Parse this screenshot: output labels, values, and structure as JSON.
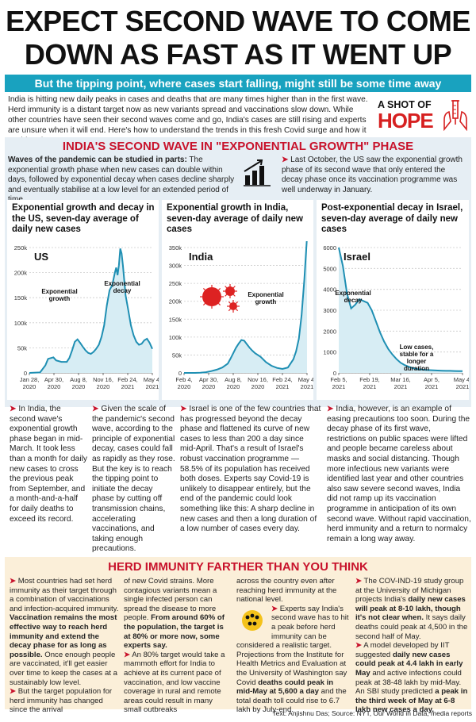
{
  "headline": {
    "line1": "EXPECT SECOND WAVE TO COME",
    "line2": "DOWN AS FAST AS IT WENT UP"
  },
  "subheadline": "But the tipping point, where cases start falling, might still be some time away",
  "intro": "India is hitting new daily peaks in cases and deaths that are many times higher than in the first wave. Herd immunity is a distant target now as new variants spread and vaccinations slow down. While other countries have seen their second waves come and go, India's cases are still rising and experts are unsure when it will end. Here's how to understand the trends in this fresh Covid surge and how it could end",
  "badge": {
    "line1": "A SHOT OF",
    "line2": "HOPE"
  },
  "section1": {
    "title": "INDIA'S SECOND WAVE IN \"EXPONENTIAL GROWTH\" PHASE",
    "waves_bold": "Waves of the pandemic can be studied in parts:",
    "waves_rest": " The exponential growth phase when new cases can double within days, followed by exponential decay when cases decline sharply and eventually stabilise at a low level for an extended period of time.",
    "lastoct": "Last October, the US saw the exponential growth phase of its second wave that only entered the decay phase once its vaccination programme was well underway in January."
  },
  "chart_data": [
    {
      "type": "line",
      "title": "Exponential growth and decay in the US, seven-day average of daily new cases",
      "panel_label": "US",
      "color": "#1f8fb3",
      "x_ticks": [
        "Jan 28,\n2020",
        "Apr 30,\n2020",
        "Aug 8,\n2020",
        "Nov 16,\n2020",
        "Feb 24,\n2021",
        "May 4,\n2021"
      ],
      "y_ticks": [
        "250k",
        "200k",
        "150k",
        "100k",
        "50k",
        "0"
      ],
      "ylim": [
        0,
        250000
      ],
      "annotations": [
        "Exponential growth",
        "Exponential decay"
      ],
      "x": [
        0,
        40,
        60,
        70,
        90,
        100,
        120,
        140,
        150,
        160,
        170,
        180,
        190,
        200,
        210,
        220,
        230,
        240,
        250,
        260,
        270,
        280,
        290,
        300,
        310,
        320,
        325,
        330,
        335,
        340,
        345,
        350,
        355,
        360,
        370,
        380,
        390,
        400,
        410,
        420,
        430,
        440,
        450,
        460
      ],
      "y": [
        0,
        1000,
        15000,
        28000,
        31000,
        25000,
        22000,
        22000,
        30000,
        45000,
        62000,
        67000,
        60000,
        52000,
        45000,
        40000,
        38000,
        42000,
        48000,
        56000,
        72000,
        95000,
        135000,
        165000,
        175000,
        200000,
        210000,
        195000,
        215000,
        248000,
        238000,
        215000,
        185000,
        155000,
        125000,
        95000,
        75000,
        62000,
        56000,
        58000,
        65000,
        68000,
        60000,
        48000
      ]
    },
    {
      "type": "line",
      "title": "Exponential growth in India, seven-day average of daily new cases",
      "panel_label": "India",
      "color": "#1f8fb3",
      "x_ticks": [
        "Feb 4,\n2020",
        "Apr 30,\n2020",
        "Aug 8,\n2020",
        "Nov 16,\n2020",
        "Feb 24,\n2021",
        "May 4,\n2021"
      ],
      "y_ticks": [
        "350k",
        "300k",
        "250k",
        "200k",
        "150k",
        "100k",
        "50k",
        "0"
      ],
      "ylim": [
        0,
        350000
      ],
      "annotations": [
        "Exponential growth"
      ],
      "x": [
        0,
        40,
        60,
        80,
        100,
        120,
        140,
        160,
        170,
        180,
        190,
        200,
        210,
        220,
        230,
        240,
        250,
        260,
        280,
        300,
        320,
        340,
        360,
        380,
        400,
        410,
        420,
        430,
        440,
        445,
        450
      ],
      "y": [
        0,
        0,
        500,
        2000,
        5000,
        9000,
        15000,
        26000,
        40000,
        55000,
        70000,
        82000,
        92000,
        90000,
        80000,
        70000,
        62000,
        55000,
        45000,
        30000,
        20000,
        14000,
        11000,
        15000,
        38000,
        60000,
        95000,
        160000,
        260000,
        320000,
        380000
      ]
    },
    {
      "type": "line",
      "title": "Post-exponential decay in Israel, seven-day average of daily new cases",
      "panel_label": "Israel",
      "color": "#1f8fb3",
      "x_ticks": [
        "Feb 5,\n2021",
        "Feb 19,\n2021",
        "Mar 16,\n2021",
        "Apr 5,\n2021",
        "May 4,\n2021"
      ],
      "y_ticks": [
        "6000",
        "5000",
        "4000",
        "3000",
        "2000",
        "1000",
        "0"
      ],
      "ylim": [
        0,
        6800
      ],
      "annotations": [
        "Exponential decay",
        "Low cases, stable for a longer duration"
      ],
      "x": [
        0,
        3,
        6,
        9,
        12,
        15,
        18,
        21,
        24,
        27,
        30,
        33,
        36,
        39,
        42,
        45,
        48,
        51,
        54,
        57,
        60,
        63,
        66,
        69,
        72,
        75,
        78,
        81,
        84,
        87,
        90
      ],
      "y": [
        6800,
        5800,
        4300,
        3500,
        3700,
        4000,
        3900,
        3800,
        3400,
        2800,
        2200,
        1700,
        1300,
        1000,
        750,
        550,
        420,
        330,
        260,
        210,
        180,
        160,
        150,
        140,
        130,
        120,
        110,
        110,
        105,
        100,
        95
      ]
    }
  ],
  "col1": {
    "lead": "In India, the second wave's exponential growth phase began in mid-March. It took less than a month for daily new cases to cross the previous peak from September, and a month-and-a-half for daily deaths to exceed its record."
  },
  "col2": {
    "lead": "Given the scale of the pandemic's second wave, according to the principle of exponential decay, cases could fall as rapidly as they rose. But the key is to reach the tipping point to initiate the decay phase by cutting off transmission chains, accelerating vaccinations, and taking enough precautions."
  },
  "col3": {
    "lead": "Israel is one of the few countries that has progressed beyond the decay phase and flattened its curve of new cases to less than 200 a day since mid-April. That's a result of Israel's robust vaccination programme — 58.5% of its population has received both doses. Experts say Covid-19 is unlikely to disappear entirely, but the end of the pandemic could look something like this: A sharp decline in new cases and then a long duration of a low number of cases every day."
  },
  "col4": {
    "lead": "India, however, is an example of easing precautions too soon. During the decay phase of its first wave, restrictions on public spaces were lifted and people became careless about masks and social distancing. Though more infectious new variants were identified last year and other countries also saw severe second waves, India did not ramp up its vaccination programme in anticipation of its own second wave. Without rapid vaccination, herd immunity and a return to normalcy remain a long way away."
  },
  "herd": {
    "title": "HERD IMMUNITY FARTHER THAN YOU THINK",
    "c1p1": "Most countries had set herd immunity as their target through a combination of vaccinations and infection-acquired immunity. ",
    "c1p1b": "Vaccination remains the most effective way to reach herd immunity and extend the decay phase for as long as possible.",
    "c1p1c": " Once enough people are vaccinated, it'll get easier over time to keep the cases at a sustainably low level.",
    "c1p2": "But the target population for herd immunity has changed since the arrival",
    "c2p1": "of new Covid strains. More contagious variants mean a single infected person can spread the disease to more people. ",
    "c2p1b": "From around 60% of the population, the target is at 80% or more now, some experts say.",
    "c2p2": "An 80% target would take a mammoth effort for India to achieve at its current pace of vaccination, and low vaccine coverage in rural and remote areas could result in many small outbreaks",
    "c3p1": "across the country even after reaching herd immunity at the national level.",
    "c3p2": "Experts say India's second wave has to hit a peak before herd immunity can be considered a realistic target. Projections from the Institute for Health Metrics and Evaluation at the University of Washington say Covid ",
    "c3p2b": "deaths could peak in mid-May at 5,600 a day",
    "c3p2c": " and the total death toll could rise to 6.7 lakh by July-end.",
    "c4p1": "The COV-IND-19 study group at the University of Michigan projects India's ",
    "c4p1b": "daily new cases will peak at 8-10 lakh, though it's not clear when.",
    "c4p1c": " It says daily deaths could peak at 4,500 in the second half of May.",
    "c4p2": "A model developed by IIT suggested ",
    "c4p2b": "daily new cases could peak at 4.4 lakh in early May",
    "c4p2c": " and active infections could peak at 38-48 lakh by mid-May. An SBI study predicted ",
    "c4p2d": "a peak in the third week of May at 6-8 lakh new cases a day."
  },
  "credit": "Text: Anjishnu Das; Source: NYT, Our World in Data, media reports"
}
